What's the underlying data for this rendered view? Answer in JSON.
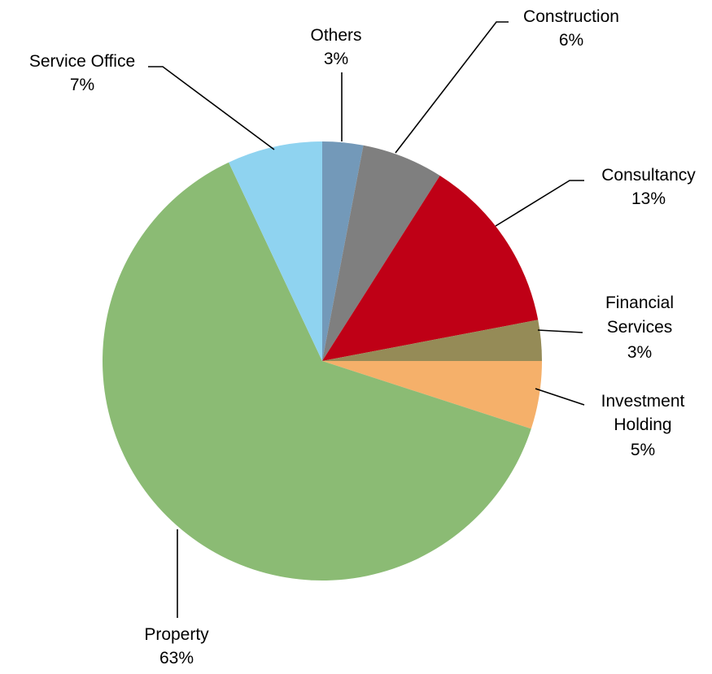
{
  "chart_data": {
    "type": "pie",
    "title": "",
    "start": "12 o'clock",
    "direction": "clockwise",
    "slices": [
      {
        "label": "Others",
        "value": 3,
        "percent_label": "3%",
        "color": "#7399B9"
      },
      {
        "label": "Construction",
        "value": 6,
        "percent_label": "6%",
        "color": "#7F7F7F"
      },
      {
        "label": "Consultancy",
        "value": 13,
        "percent_label": "13%",
        "color": "#BF0016"
      },
      {
        "label": "Financial Services",
        "value": 3,
        "percent_label": "3%",
        "color": "#958B57"
      },
      {
        "label": "Investment Holding",
        "value": 5,
        "percent_label": "5%",
        "color": "#F5B06A"
      },
      {
        "label": "Property",
        "value": 63,
        "percent_label": "63%",
        "color": "#8BBB74"
      },
      {
        "label": "Service Office",
        "value": 7,
        "percent_label": "7%",
        "color": "#8FD3F0"
      }
    ]
  }
}
